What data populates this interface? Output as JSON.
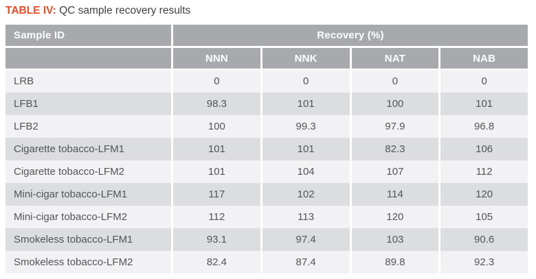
{
  "caption": {
    "label": "TABLE IV:",
    "text": " QC sample recovery results"
  },
  "table": {
    "header": {
      "sample_id": "Sample ID",
      "group": "Recovery (%)",
      "columns": [
        "NNN",
        "NNK",
        "NAT",
        "NAB"
      ]
    },
    "rows": [
      {
        "sample_id": "LRB",
        "values": [
          "0",
          "0",
          "0",
          "0"
        ]
      },
      {
        "sample_id": "LFB1",
        "values": [
          "98.3",
          "101",
          "100",
          "101"
        ]
      },
      {
        "sample_id": "LFB2",
        "values": [
          "100",
          "99.3",
          "97.9",
          "96.8"
        ]
      },
      {
        "sample_id": "Cigarette tobacco-LFM1",
        "values": [
          "101",
          "101",
          "82.3",
          "106"
        ]
      },
      {
        "sample_id": "Cigarette tobacco-LFM2",
        "values": [
          "101",
          "104",
          "107",
          "112"
        ]
      },
      {
        "sample_id": "Mini-cigar tobacco-LFM1",
        "values": [
          "117",
          "102",
          "114",
          "120"
        ]
      },
      {
        "sample_id": "Mini-cigar tobacco-LFM2",
        "values": [
          "112",
          "113",
          "120",
          "105"
        ]
      },
      {
        "sample_id": "Smokeless tobacco-LFM1",
        "values": [
          "93.1",
          "97.4",
          "103",
          "90.6"
        ]
      },
      {
        "sample_id": "Smokeless tobacco-LFM2",
        "values": [
          "82.4",
          "87.4",
          "89.8",
          "92.3"
        ]
      }
    ]
  },
  "colors": {
    "accent": "#ee4c27",
    "caption_text": "#414042",
    "header_bg": "#a7a9ac",
    "header_text": "#ffffff",
    "row_light": "#f2f2f4",
    "row_stripe": "#dcddde",
    "cell_text": "#545456"
  }
}
